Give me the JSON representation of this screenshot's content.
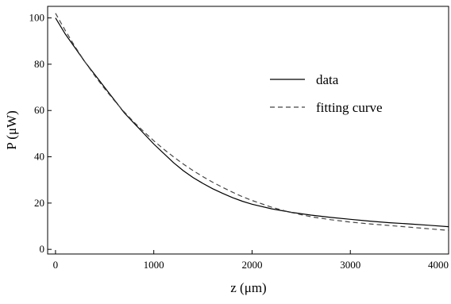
{
  "chart_data": {
    "type": "line",
    "title": "",
    "xlabel": "z (μm)",
    "ylabel": "P (μW)",
    "xlim": [
      -80,
      4000
    ],
    "ylim": [
      -2,
      105
    ],
    "xticks": [
      0,
      1000,
      2000,
      3000,
      4000
    ],
    "yticks": [
      0,
      20,
      40,
      60,
      80,
      100
    ],
    "xtick_labels": [
      "0",
      "1000",
      "2000",
      "3000",
      "4000"
    ],
    "ytick_labels": [
      "0",
      "20",
      "40",
      "60",
      "80",
      "100"
    ],
    "grid": false,
    "legend_position": "right-middle",
    "series": [
      {
        "name": "data",
        "style": "solid",
        "color": "#000000",
        "x": [
          0,
          100,
          200,
          300,
          400,
          500,
          600,
          700,
          800,
          900,
          1000,
          1100,
          1200,
          1300,
          1400,
          1500,
          1600,
          1700,
          1800,
          1900,
          2000,
          2200,
          2400,
          2600,
          2800,
          3000,
          3200,
          3400,
          3600,
          3800,
          4000
        ],
        "y": [
          100,
          93,
          87,
          81,
          75.5,
          70,
          64.5,
          59,
          54.5,
          50,
          45.5,
          41.5,
          37.5,
          34,
          31,
          28.5,
          26.2,
          24.2,
          22.4,
          20.8,
          19.5,
          17.5,
          16,
          14.8,
          13.8,
          13,
          12.2,
          11.5,
          11,
          10.4,
          9.8
        ]
      },
      {
        "name": "fitting curve",
        "style": "dashed",
        "color": "#000000",
        "x": [
          0,
          100,
          200,
          300,
          400,
          500,
          600,
          700,
          800,
          900,
          1000,
          1100,
          1200,
          1300,
          1400,
          1500,
          1600,
          1700,
          1800,
          1900,
          2000,
          2200,
          2400,
          2600,
          2800,
          3000,
          3200,
          3400,
          3600,
          3800,
          4000
        ],
        "y": [
          102,
          94.5,
          87.5,
          81,
          75,
          69.4,
          64.2,
          59.4,
          54.9,
          50.8,
          46.9,
          43.3,
          40,
          36.9,
          34,
          31.4,
          29,
          26.8,
          24.7,
          22.8,
          21.1,
          18.2,
          15.9,
          14.1,
          12.8,
          11.8,
          11,
          10.3,
          9.6,
          8.9,
          8.2
        ]
      }
    ]
  }
}
